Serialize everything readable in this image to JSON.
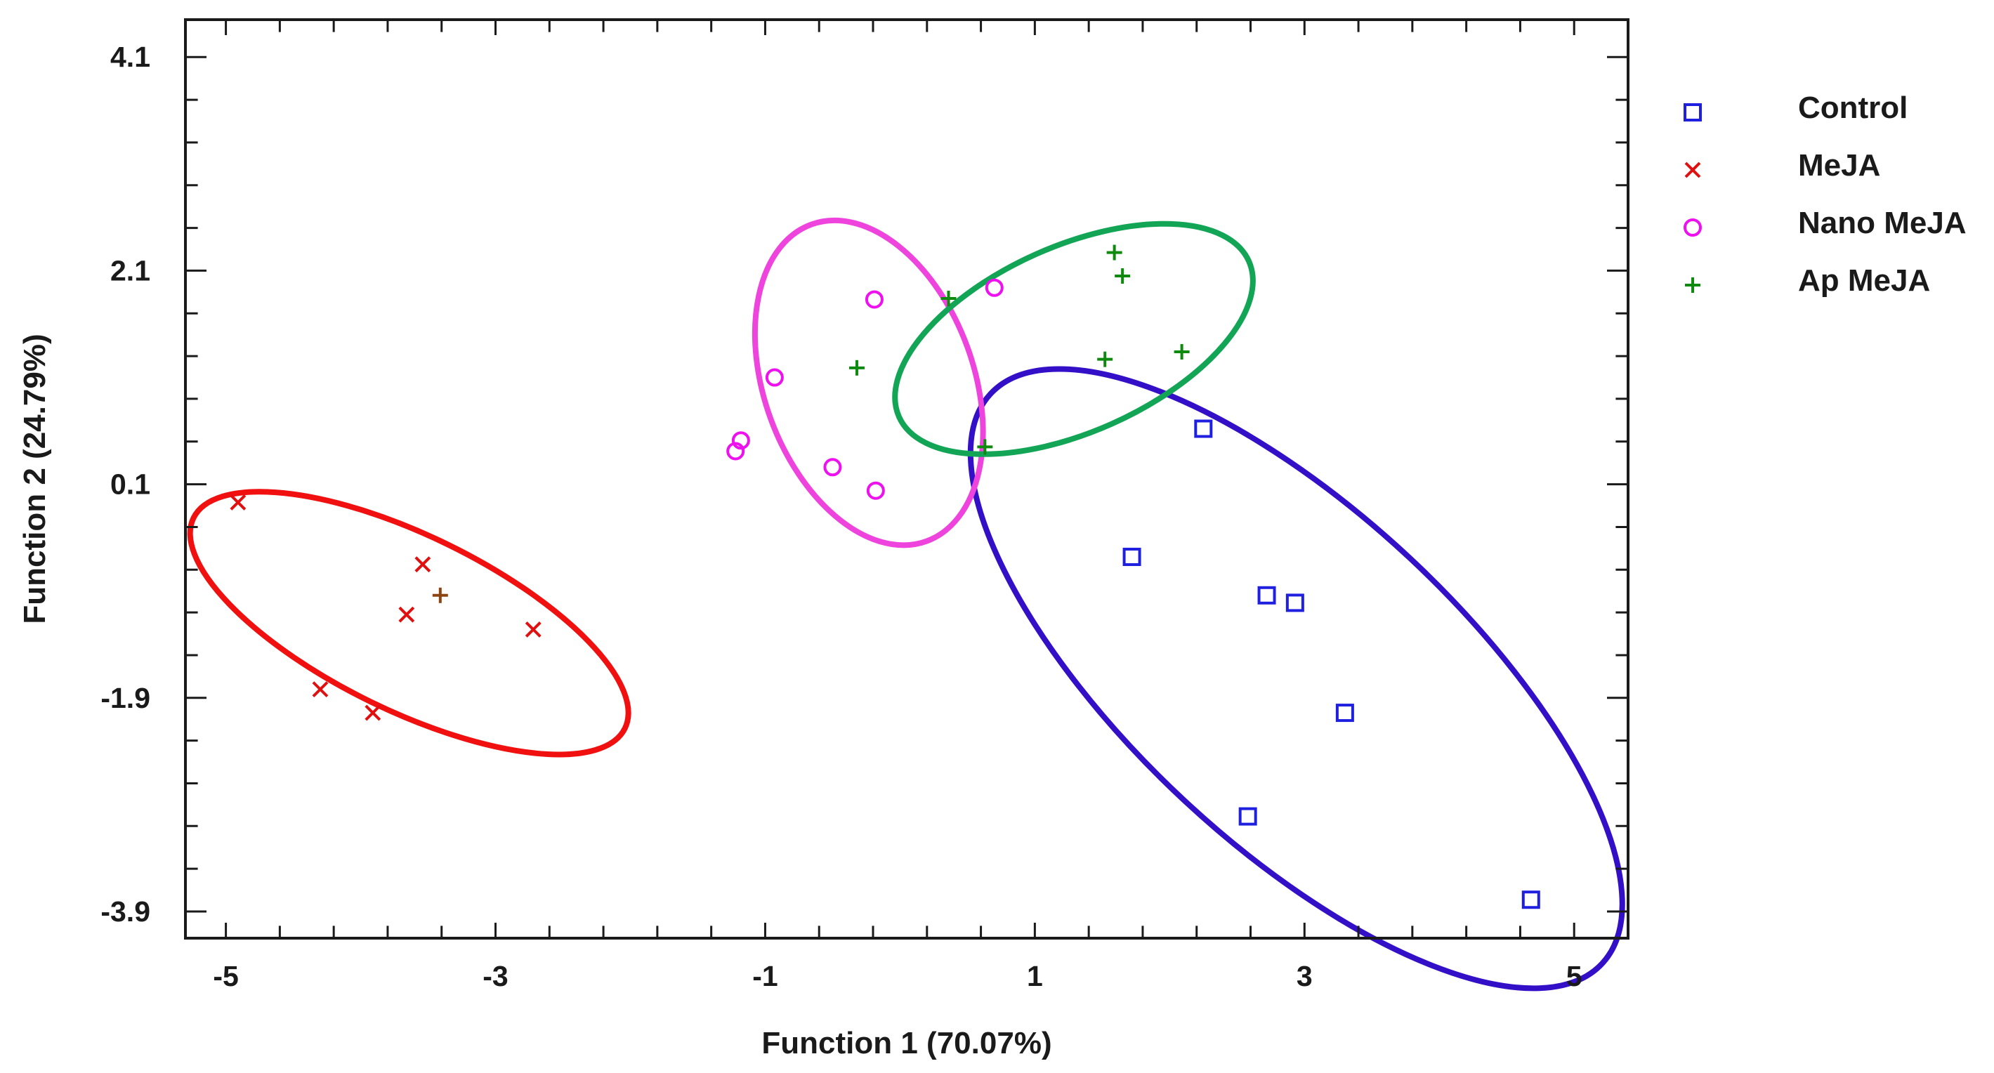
{
  "chart_data": {
    "type": "scatter",
    "title": "",
    "xlabel": "Function 1 (70.07%)",
    "ylabel": "Function 2 (24.79%)",
    "xlim": [
      -5.3,
      5.4
    ],
    "ylim": [
      -4.15,
      4.45
    ],
    "grid": false,
    "legend_position": "right",
    "x_ticks": [
      -5,
      -3,
      -1,
      1,
      3,
      5
    ],
    "y_ticks": [
      4.1,
      2.1,
      0.1,
      -1.9,
      -3.9
    ],
    "x_tick_labels": [
      "-5",
      "-3",
      "-1",
      "1",
      "3",
      "5"
    ],
    "y_tick_labels": [
      "4.1",
      "2.1",
      "0.1",
      "-1.9",
      "-3.9"
    ],
    "series": [
      {
        "name": "Control",
        "marker": "square",
        "color": "#1f1fe0",
        "ellipse_color": "#3310c8",
        "points": [
          [
            2.25,
            0.62
          ],
          [
            1.72,
            -0.58
          ],
          [
            2.72,
            -0.94
          ],
          [
            2.93,
            -1.01
          ],
          [
            3.3,
            -2.04
          ],
          [
            2.58,
            -3.01
          ],
          [
            4.68,
            -3.79
          ]
        ],
        "ellipse": {
          "cx": 2.94,
          "cy": -1.72,
          "rx": 3.1,
          "ry": 1.55,
          "angle_deg": -43
        }
      },
      {
        "name": "MeJA",
        "marker": "x",
        "color": "#e01010",
        "ellipse_color": "#f01010",
        "points": [
          [
            -4.91,
            -0.07
          ],
          [
            -3.54,
            -0.65
          ],
          [
            -3.66,
            -1.12
          ],
          [
            -2.72,
            -1.26
          ],
          [
            -4.3,
            -1.82
          ],
          [
            -3.91,
            -2.04
          ]
        ],
        "ellipse": {
          "cx": -3.64,
          "cy": -1.2,
          "rx": 1.78,
          "ry": 0.82,
          "angle_deg": -26
        }
      },
      {
        "name": "Nano MeJA",
        "marker": "circle",
        "color": "#ee10ee",
        "ellipse_color": "#ee44dd",
        "points": [
          [
            -0.19,
            1.83
          ],
          [
            0.7,
            1.94
          ],
          [
            -0.93,
            1.1
          ],
          [
            -1.18,
            0.51
          ],
          [
            -1.22,
            0.41
          ],
          [
            -0.5,
            0.26
          ],
          [
            -0.18,
            0.04
          ]
        ],
        "ellipse": {
          "cx": -0.23,
          "cy": 1.05,
          "rx": 1.25,
          "ry": 0.98,
          "angle_deg": -70
        }
      },
      {
        "name": "Ap MeJA",
        "marker": "plus",
        "color": "#0e8a0e",
        "ellipse_color": "#11a555",
        "points": [
          [
            1.59,
            2.27
          ],
          [
            1.65,
            2.05
          ],
          [
            0.36,
            1.84
          ],
          [
            1.52,
            1.27
          ],
          [
            2.09,
            1.34
          ],
          [
            -0.32,
            1.19
          ],
          [
            0.63,
            0.45
          ]
        ],
        "ellipse": {
          "cx": 1.29,
          "cy": 1.46,
          "rx": 1.42,
          "ry": 0.87,
          "angle_deg": 24
        }
      }
    ],
    "unassigned_points": [
      {
        "marker": "plus",
        "color": "#8b4513",
        "x": -3.41,
        "y": -0.94
      }
    ]
  }
}
